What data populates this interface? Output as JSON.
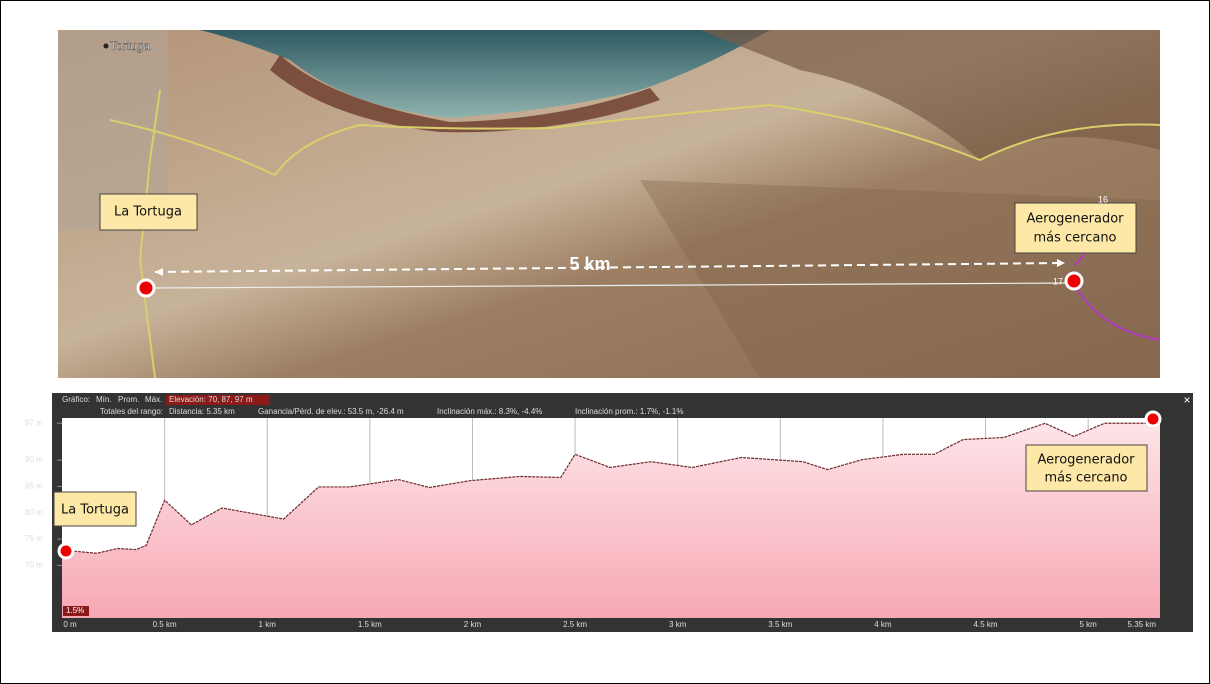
{
  "map": {
    "place_label": "Tortuga",
    "start_label": "La Tortuga",
    "end_label": [
      "Aerogenerador",
      "más cercano"
    ],
    "distance_label": "5 km",
    "marker_a": "16",
    "marker_b": "17"
  },
  "profile": {
    "header": {
      "graph": "Gráfico:",
      "min": "Mín.",
      "avg": "Prom.",
      "max": "Máx.",
      "elevation": "Elevación: 70, 87, 97 m",
      "totals": "Totales del rango:",
      "distance": "Distancia: 5.35 km",
      "gain": "Ganancia/Pérd. de elev.: 53.5 m, -26.4 m",
      "max_slope": "Inclinación máx.: 8.3%, -4.4%",
      "avg_slope": "Inclinación prom.: 1.7%, -1.1%",
      "close": "×"
    },
    "slope_label": "1.5%",
    "start_label": "La Tortuga",
    "end_label": [
      "Aerogenerador",
      "más cercano"
    ],
    "xlim": [
      0,
      5.35
    ],
    "ylim": [
      60,
      98
    ],
    "xticks": [
      {
        "value": 0,
        "label": "0 m"
      },
      {
        "value": 0.5,
        "label": "0.5 km"
      },
      {
        "value": 1,
        "label": "1 km"
      },
      {
        "value": 1.5,
        "label": "1.5 km"
      },
      {
        "value": 2,
        "label": "2 km"
      },
      {
        "value": 2.5,
        "label": "2.5 km"
      },
      {
        "value": 3,
        "label": "3 km"
      },
      {
        "value": 3.5,
        "label": "3.5 km"
      },
      {
        "value": 4,
        "label": "4 km"
      },
      {
        "value": 4.5,
        "label": "4.5 km"
      },
      {
        "value": 5,
        "label": "5 km"
      },
      {
        "value": 5.35,
        "label": "5.35 km"
      }
    ],
    "yticks": [
      {
        "value": 70,
        "label": "70 m"
      },
      {
        "value": 75,
        "label": "75 m"
      },
      {
        "value": 80,
        "label": "80 m"
      },
      {
        "value": 85,
        "label": "85 m"
      },
      {
        "value": 90,
        "label": "90 m"
      },
      {
        "value": 97,
        "label": "97 m"
      }
    ],
    "x": [
      0,
      0.17,
      0.27,
      0.36,
      0.41,
      0.5,
      0.63,
      0.78,
      1.08,
      1.25,
      1.4,
      1.64,
      1.79,
      1.99,
      2.23,
      2.43,
      2.5,
      2.67,
      2.87,
      3.07,
      3.31,
      3.61,
      3.73,
      3.9,
      4.1,
      4.25,
      4.39,
      4.59,
      4.79,
      4.93,
      5.08,
      5.35
    ],
    "values": [
      72.9,
      72.3,
      73.2,
      73,
      73.8,
      82.4,
      77.7,
      80.9,
      78.8,
      84.9,
      84.9,
      86.3,
      84.8,
      86.1,
      86.9,
      86.7,
      91.1,
      88.6,
      89.7,
      88.6,
      90.5,
      89.7,
      88.2,
      90.1,
      91.1,
      91.1,
      93.9,
      94.3,
      97,
      94.5,
      97,
      97
    ]
  }
}
